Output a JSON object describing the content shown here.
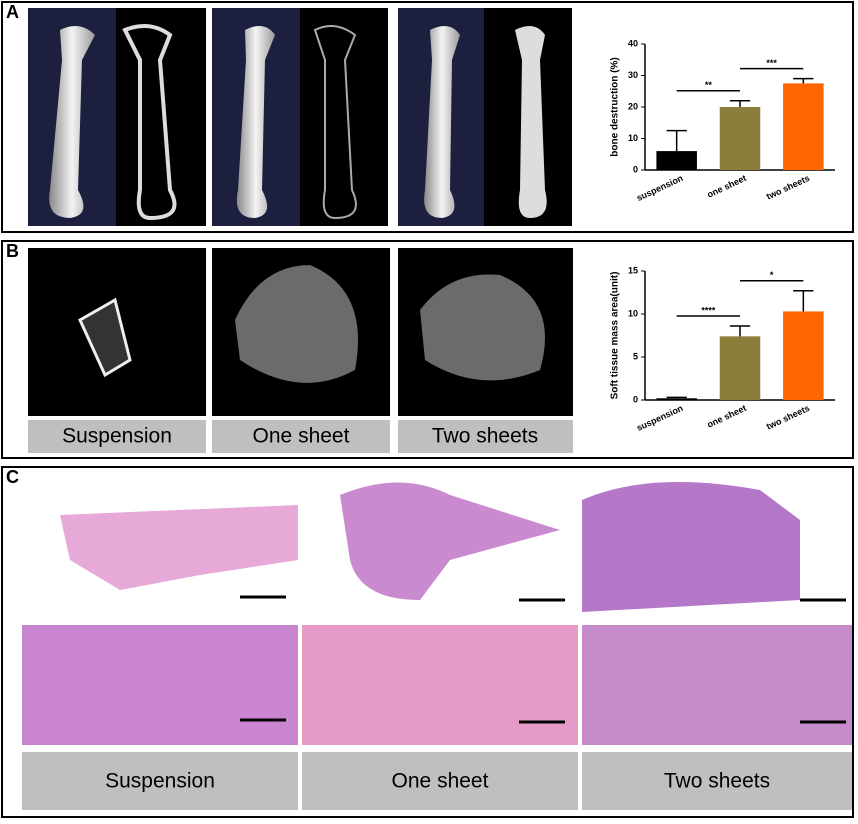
{
  "panel_labels": [
    "A",
    "B",
    "C"
  ],
  "b_labels": [
    "Suspension",
    "One sheet",
    "Two sheets"
  ],
  "c_labels": [
    "Suspension",
    "One sheet",
    "Two sheets"
  ],
  "chart_data": [
    {
      "type": "bar",
      "y_label": "bone destruction (%)",
      "categories": [
        "suspension",
        "one sheet",
        "two sheets"
      ],
      "values": [
        6,
        20,
        27.5
      ],
      "errors": [
        6.5,
        2,
        1.5
      ],
      "colors": [
        "#000000",
        "#8b7d3a",
        "#ff6600"
      ],
      "ylim": [
        0,
        40
      ],
      "yticks": [
        0,
        10,
        20,
        30,
        40
      ],
      "significance": [
        {
          "between": [
            "suspension",
            "one sheet"
          ],
          "label": "**"
        },
        {
          "between": [
            "one sheet",
            "two sheets"
          ],
          "label": "***"
        }
      ]
    },
    {
      "type": "bar",
      "y_label": "Soft tissue mass area(unit)",
      "categories": [
        "suspension",
        "one sheet",
        "two sheets"
      ],
      "values": [
        0.2,
        7.4,
        10.3
      ],
      "errors": [
        0.1,
        1.2,
        2.4
      ],
      "colors": [
        "#000000",
        "#8b7d3a",
        "#ff6600"
      ],
      "ylim": [
        0,
        15
      ],
      "yticks": [
        0,
        5,
        10,
        15
      ],
      "significance": [
        {
          "between": [
            "suspension",
            "one sheet"
          ],
          "label": "****"
        },
        {
          "between": [
            "one sheet",
            "two sheets"
          ],
          "label": "*"
        }
      ]
    }
  ]
}
